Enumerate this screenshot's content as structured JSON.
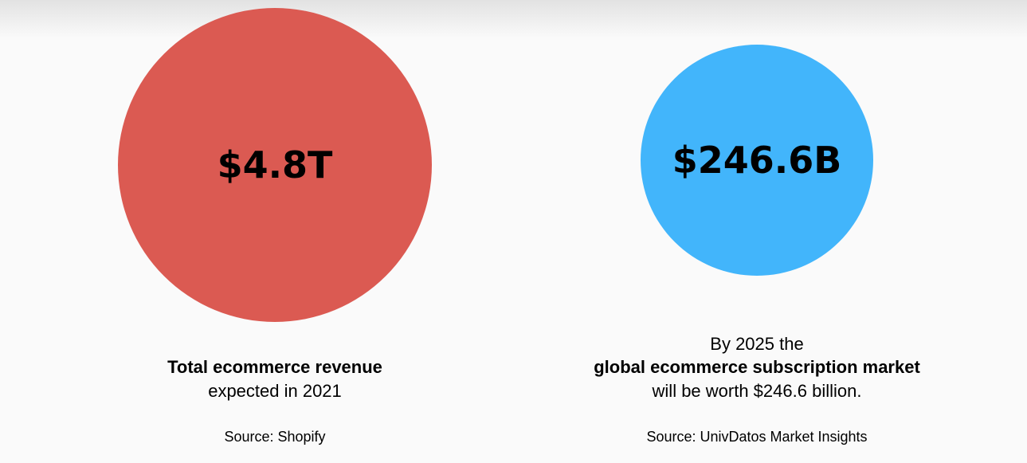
{
  "panels": [
    {
      "value": "$4.8T",
      "lines": [
        "Total ecommerce revenue",
        "expected in 2021"
      ],
      "source": "Source: Shopify"
    },
    {
      "value": "$246.6B",
      "lines": [
        "By 2025 the",
        "global ecommerce subscription market",
        "will be worth $246.6 billion."
      ],
      "source": "Source: UnivDatos Market Insights"
    }
  ]
}
